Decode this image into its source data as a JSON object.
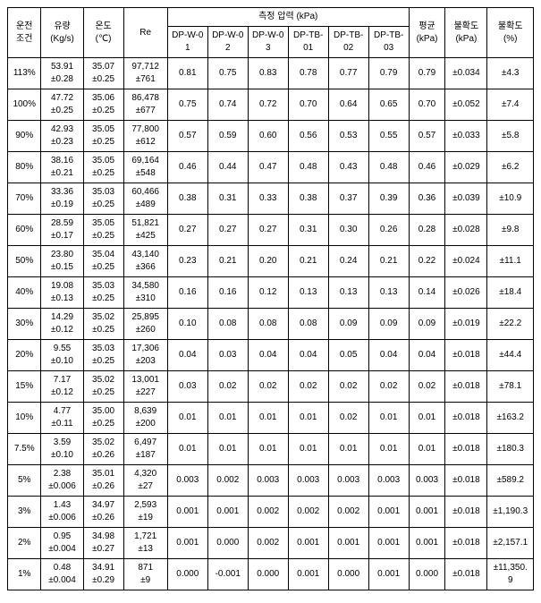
{
  "headers": {
    "condition": "운전\n조건",
    "flow": "유량\n(Kg/s)",
    "temp": "온도\n(℃)",
    "re": "Re",
    "pressure_group": "측정 압력 (kPa)",
    "dp": [
      "DP-W-0\n1",
      "DP-W-0\n2",
      "DP-W-0\n3",
      "DP-TB-\n01",
      "DP-TB-\n02",
      "DP-TB-\n03"
    ],
    "avg": "평균\n(kPa)",
    "unc_kpa": "불확도\n(kPa)",
    "unc_pct": "불확도\n(%)"
  },
  "rows": [
    {
      "cond": "113%",
      "flow": "53.91\n±0.28",
      "temp": "35.07\n±0.25",
      "re": "97,712\n±761",
      "dp": [
        "0.81",
        "0.75",
        "0.83",
        "0.78",
        "0.77",
        "0.79"
      ],
      "avg": "0.79",
      "uk": "±0.034",
      "up": "±4.3"
    },
    {
      "cond": "100%",
      "flow": "47.72\n±0.25",
      "temp": "35.06\n±0.25",
      "re": "86,478\n±677",
      "dp": [
        "0.75",
        "0.74",
        "0.72",
        "0.70",
        "0.64",
        "0.65"
      ],
      "avg": "0.70",
      "uk": "±0.052",
      "up": "±7.4"
    },
    {
      "cond": "90%",
      "flow": "42.93\n±0.23",
      "temp": "35.05\n±0.25",
      "re": "77,800\n±612",
      "dp": [
        "0.57",
        "0.59",
        "0.60",
        "0.56",
        "0.53",
        "0.55"
      ],
      "avg": "0.57",
      "uk": "±0.033",
      "up": "±5.8"
    },
    {
      "cond": "80%",
      "flow": "38.16\n±0.21",
      "temp": "35.05\n±0.25",
      "re": "69,164\n±548",
      "dp": [
        "0.46",
        "0.44",
        "0.47",
        "0.48",
        "0.43",
        "0.48"
      ],
      "avg": "0.46",
      "uk": "±0.029",
      "up": "±6.2"
    },
    {
      "cond": "70%",
      "flow": "33.36\n±0.19",
      "temp": "35.03\n±0.25",
      "re": "60,466\n±489",
      "dp": [
        "0.38",
        "0.31",
        "0.33",
        "0.38",
        "0.37",
        "0.39"
      ],
      "avg": "0.36",
      "uk": "±0.039",
      "up": "±10.9"
    },
    {
      "cond": "60%",
      "flow": "28.59\n±0.17",
      "temp": "35.05\n±0.25",
      "re": "51,821\n±425",
      "dp": [
        "0.27",
        "0.27",
        "0.27",
        "0.31",
        "0.30",
        "0.26"
      ],
      "avg": "0.28",
      "uk": "±0.028",
      "up": "±9.8"
    },
    {
      "cond": "50%",
      "flow": "23.80\n±0.15",
      "temp": "35.04\n±0.25",
      "re": "43,140\n±366",
      "dp": [
        "0.23",
        "0.21",
        "0.20",
        "0.21",
        "0.24",
        "0.21"
      ],
      "avg": "0.22",
      "uk": "±0.024",
      "up": "±11.1"
    },
    {
      "cond": "40%",
      "flow": "19.08\n±0.13",
      "temp": "35.03\n±0.25",
      "re": "34,580\n±310",
      "dp": [
        "0.16",
        "0.16",
        "0.12",
        "0.13",
        "0.13",
        "0.13"
      ],
      "avg": "0.14",
      "uk": "±0.026",
      "up": "±18.4"
    },
    {
      "cond": "30%",
      "flow": "14.29\n±0.12",
      "temp": "35.02\n±0.25",
      "re": "25,895\n±260",
      "dp": [
        "0.10",
        "0.08",
        "0.08",
        "0.08",
        "0.09",
        "0.09"
      ],
      "avg": "0.09",
      "uk": "±0.019",
      "up": "±22.2"
    },
    {
      "cond": "20%",
      "flow": "9.55\n±0.10",
      "temp": "35.03\n±0.25",
      "re": "17,306\n±203",
      "dp": [
        "0.04",
        "0.03",
        "0.04",
        "0.04",
        "0.05",
        "0.04"
      ],
      "avg": "0.04",
      "uk": "±0.018",
      "up": "±44.4"
    },
    {
      "cond": "15%",
      "flow": "7.17\n±0.12",
      "temp": "35.02\n±0.25",
      "re": "13,001\n±227",
      "dp": [
        "0.03",
        "0.02",
        "0.02",
        "0.02",
        "0.02",
        "0.02"
      ],
      "avg": "0.02",
      "uk": "±0.018",
      "up": "±78.1"
    },
    {
      "cond": "10%",
      "flow": "4.77\n±0.11",
      "temp": "35.00\n±0.25",
      "re": "8,639\n±200",
      "dp": [
        "0.01",
        "0.01",
        "0.01",
        "0.01",
        "0.02",
        "0.01"
      ],
      "avg": "0.01",
      "uk": "±0.018",
      "up": "±163.2"
    },
    {
      "cond": "7.5%",
      "flow": "3.59\n±0.10",
      "temp": "35.02\n±0.26",
      "re": "6,497\n±187",
      "dp": [
        "0.01",
        "0.01",
        "0.01",
        "0.01",
        "0.01",
        "0.01"
      ],
      "avg": "0.01",
      "uk": "±0.018",
      "up": "±180.3"
    },
    {
      "cond": "5%",
      "flow": "2.38\n±0.006",
      "temp": "35.01\n±0.26",
      "re": "4,320\n±27",
      "dp": [
        "0.003",
        "0.002",
        "0.003",
        "0.003",
        "0.003",
        "0.003"
      ],
      "avg": "0.003",
      "uk": "±0.018",
      "up": "±589.2"
    },
    {
      "cond": "3%",
      "flow": "1.43\n±0.006",
      "temp": "34.97\n±0.26",
      "re": "2,593\n±19",
      "dp": [
        "0.001",
        "0.001",
        "0.002",
        "0.002",
        "0.002",
        "0.001"
      ],
      "avg": "0.001",
      "uk": "±0.018",
      "up": "±1,190.3"
    },
    {
      "cond": "2%",
      "flow": "0.95\n±0.004",
      "temp": "34.98\n±0.27",
      "re": "1,721\n±13",
      "dp": [
        "0.001",
        "0.000",
        "0.002",
        "0.001",
        "0.001",
        "0.001"
      ],
      "avg": "0.001",
      "uk": "±0.018",
      "up": "±2,157.1"
    },
    {
      "cond": "1%",
      "flow": "0.48\n±0.004",
      "temp": "34.91\n±0.29",
      "re": "871\n±9",
      "dp": [
        "0.000",
        "-0.001",
        "0.000",
        "0.001",
        "0.000",
        "0.001"
      ],
      "avg": "0.000",
      "uk": "±0.018",
      "up": "±11,350.\n9"
    }
  ]
}
